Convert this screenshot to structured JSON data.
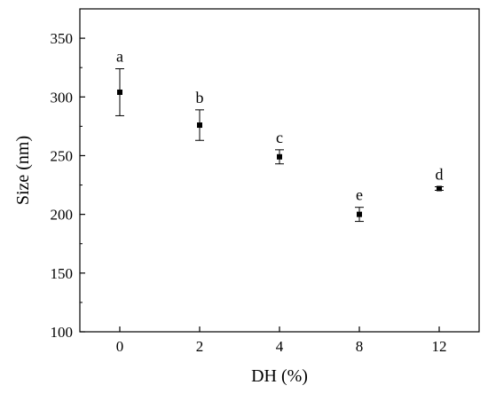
{
  "chart_data": {
    "type": "scatter",
    "xlabel": "DH (%)",
    "ylabel": "Size (nm)",
    "categories": [
      "0",
      "2",
      "4",
      "8",
      "12"
    ],
    "values": [
      304,
      276,
      249,
      200,
      222
    ],
    "error": [
      20,
      13,
      6,
      6,
      1.5
    ],
    "letters": [
      "a",
      "b",
      "c",
      "e",
      "d"
    ],
    "ylim": [
      100,
      375
    ],
    "yticks": [
      100,
      150,
      200,
      250,
      300,
      350
    ],
    "grid": false,
    "marker": "square",
    "color": "#000000"
  }
}
